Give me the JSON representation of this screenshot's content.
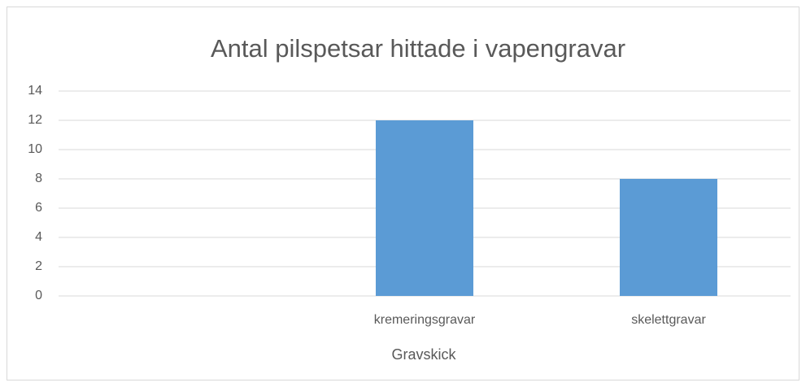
{
  "chart_data": {
    "type": "bar",
    "title": "Antal pilspetsar hittade i vapengravar",
    "x_label": "Gravskick",
    "categories": [
      null,
      "kremeringsgravar",
      "skelettgravar"
    ],
    "values": [
      null,
      12,
      8
    ],
    "color": "#5b9bd5",
    "ylim": [
      0,
      14
    ],
    "yticks": [
      0,
      2,
      4,
      6,
      8,
      10,
      12,
      14
    ],
    "grid": true
  }
}
